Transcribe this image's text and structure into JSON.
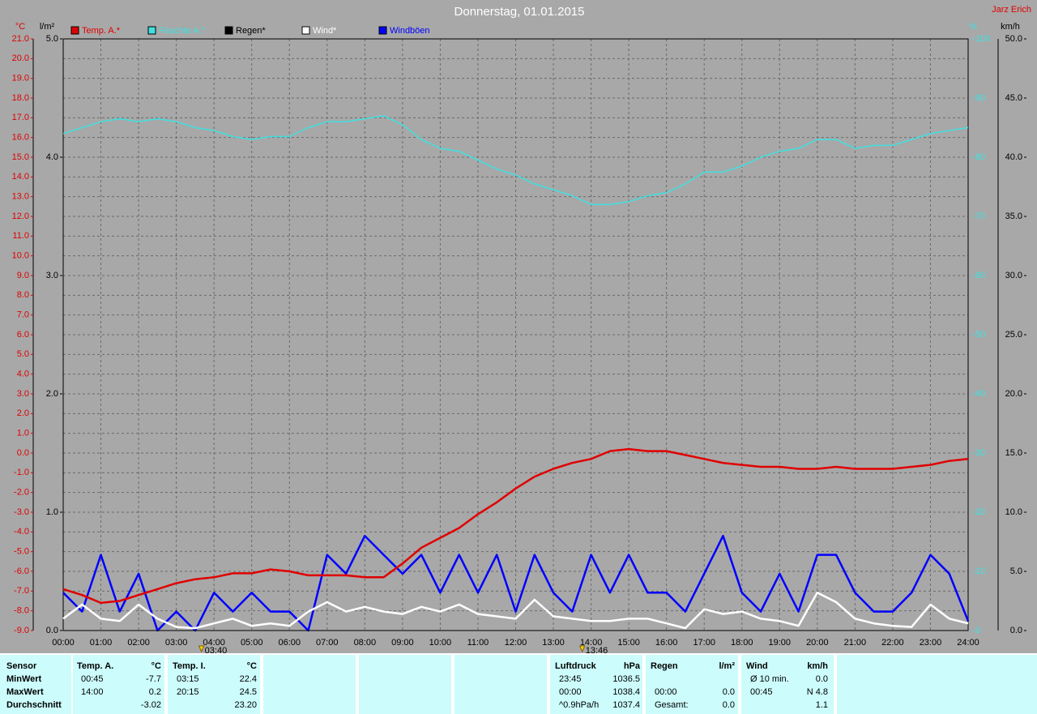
{
  "chart_data": {
    "type": "line",
    "title": "Donnerstag, 01.01.2015",
    "author": "Jarz Erich",
    "axis_units": {
      "y": "°C",
      "y2": "l/m²",
      "y3": "%",
      "y4": "km/h"
    },
    "x": [
      0,
      0.5,
      1,
      1.5,
      2,
      2.5,
      3,
      3.5,
      4,
      4.5,
      5,
      5.5,
      6,
      6.5,
      7,
      7.5,
      8,
      8.5,
      9,
      9.5,
      10,
      10.5,
      11,
      11.5,
      12,
      12.5,
      13,
      13.5,
      14,
      14.5,
      15,
      15.5,
      16,
      16.5,
      17,
      17.5,
      18,
      18.5,
      19,
      19.5,
      20,
      20.5,
      21,
      21.5,
      22,
      22.5,
      23,
      23.5,
      24
    ],
    "xlim": [
      0,
      24
    ],
    "xticks": [
      {
        "value": 0,
        "label": "00:00"
      },
      {
        "value": 1,
        "label": "01:00"
      },
      {
        "value": 2,
        "label": "02:00"
      },
      {
        "value": 3,
        "label": "03:00"
      },
      {
        "value": 4,
        "label": "04:00"
      },
      {
        "value": 5,
        "label": "05:00"
      },
      {
        "value": 6,
        "label": "06:00"
      },
      {
        "value": 7,
        "label": "07:00"
      },
      {
        "value": 8,
        "label": "08:00"
      },
      {
        "value": 9,
        "label": "09:00"
      },
      {
        "value": 10,
        "label": "10:00"
      },
      {
        "value": 11,
        "label": "11:00"
      },
      {
        "value": 12,
        "label": "12:00"
      },
      {
        "value": 13,
        "label": "13:00"
      },
      {
        "value": 14,
        "label": "14:00"
      },
      {
        "value": 15,
        "label": "15:00"
      },
      {
        "value": 16,
        "label": "16:00"
      },
      {
        "value": 17,
        "label": "17:00"
      },
      {
        "value": 18,
        "label": "18:00"
      },
      {
        "value": 19,
        "label": "19:00"
      },
      {
        "value": 20,
        "label": "20:00"
      },
      {
        "value": 21,
        "label": "21:00"
      },
      {
        "value": 22,
        "label": "22:00"
      },
      {
        "value": 23,
        "label": "23:00"
      },
      {
        "value": 24,
        "label": "24:00"
      }
    ],
    "ylim": [
      -9,
      21
    ],
    "yticks": [
      {
        "value": -9,
        "label": "-9.0"
      },
      {
        "value": -8,
        "label": "-8.0"
      },
      {
        "value": -7,
        "label": "-7.0"
      },
      {
        "value": -6,
        "label": "-6.0"
      },
      {
        "value": -5,
        "label": "-5.0"
      },
      {
        "value": -4,
        "label": "-4.0"
      },
      {
        "value": -3,
        "label": "-3.0"
      },
      {
        "value": -2,
        "label": "-2.0"
      },
      {
        "value": -1,
        "label": "-1.0"
      },
      {
        "value": 0,
        "label": "0.0"
      },
      {
        "value": 1,
        "label": "1.0"
      },
      {
        "value": 2,
        "label": "2.0"
      },
      {
        "value": 3,
        "label": "3.0"
      },
      {
        "value": 4,
        "label": "4.0"
      },
      {
        "value": 5,
        "label": "5.0"
      },
      {
        "value": 6,
        "label": "6.0"
      },
      {
        "value": 7,
        "label": "7.0"
      },
      {
        "value": 8,
        "label": "8.0"
      },
      {
        "value": 9,
        "label": "9.0"
      },
      {
        "value": 10,
        "label": "10.0"
      },
      {
        "value": 11,
        "label": "11.0"
      },
      {
        "value": 12,
        "label": "12.0"
      },
      {
        "value": 13,
        "label": "13.0"
      },
      {
        "value": 14,
        "label": "14.0"
      },
      {
        "value": 15,
        "label": "15.0"
      },
      {
        "value": 16,
        "label": "16.0"
      },
      {
        "value": 17,
        "label": "17.0"
      },
      {
        "value": 18,
        "label": "18.0"
      },
      {
        "value": 19,
        "label": "19.0"
      },
      {
        "value": 20,
        "label": "20.0"
      },
      {
        "value": 21,
        "label": "21.0"
      }
    ],
    "y2lim": [
      0,
      5
    ],
    "y2ticks": [
      {
        "value": 0,
        "label": "0.0"
      },
      {
        "value": 1,
        "label": "1.0"
      },
      {
        "value": 2,
        "label": "2.0"
      },
      {
        "value": 3,
        "label": "3.0"
      },
      {
        "value": 4,
        "label": "4.0"
      },
      {
        "value": 5,
        "label": "5.0"
      }
    ],
    "y3lim": [
      0,
      100
    ],
    "y3ticks": [
      0,
      10,
      20,
      30,
      40,
      50,
      60,
      70,
      80,
      90,
      100
    ],
    "y4lim": [
      0,
      50
    ],
    "y4ticks": [
      {
        "value": 0,
        "label": "0.0"
      },
      {
        "value": 5,
        "label": "5.0"
      },
      {
        "value": 10,
        "label": "10.0"
      },
      {
        "value": 15,
        "label": "15.0"
      },
      {
        "value": 20,
        "label": "20.0"
      },
      {
        "value": 25,
        "label": "25.0"
      },
      {
        "value": 30,
        "label": "30.0"
      },
      {
        "value": 35,
        "label": "35.0"
      },
      {
        "value": 40,
        "label": "40.0"
      },
      {
        "value": 45,
        "label": "45.0"
      },
      {
        "value": 50,
        "label": "50.0"
      }
    ],
    "grid": true,
    "series": [
      {
        "name": "Temp. A.*",
        "color": "#e00000",
        "axis": "y",
        "values": [
          -6.9,
          -7.2,
          -7.6,
          -7.5,
          -7.2,
          -6.9,
          -6.6,
          -6.4,
          -6.3,
          -6.1,
          -6.1,
          -5.9,
          -6.0,
          -6.2,
          -6.2,
          -6.2,
          -6.3,
          -6.3,
          -5.6,
          -4.8,
          -4.3,
          -3.8,
          -3.1,
          -2.5,
          -1.8,
          -1.2,
          -0.8,
          -0.5,
          -0.3,
          0.1,
          0.2,
          0.1,
          0.1,
          -0.1,
          -0.3,
          -0.5,
          -0.6,
          -0.7,
          -0.7,
          -0.8,
          -0.8,
          -0.7,
          -0.8,
          -0.8,
          -0.8,
          -0.7,
          -0.6,
          -0.4,
          -0.3
        ]
      },
      {
        "name": "Feuchte A.*",
        "color": "#40e0e0",
        "axis": "y3",
        "values": [
          84,
          85,
          86,
          86.5,
          86,
          86.5,
          86,
          85,
          84.5,
          83.5,
          83,
          83.5,
          83.5,
          85,
          86,
          86,
          86.5,
          87,
          85.5,
          83,
          81.5,
          81,
          79.5,
          78,
          77,
          75.5,
          74.5,
          73.5,
          72,
          72,
          72.5,
          73.5,
          74,
          75.5,
          77.5,
          77.5,
          78.5,
          80,
          81,
          81.5,
          83,
          83,
          81.5,
          82,
          82,
          83,
          84,
          84.5,
          85
        ]
      },
      {
        "name": "Regen*",
        "color": "#000000",
        "axis": "y2",
        "values": [
          0,
          0,
          0,
          0,
          0,
          0,
          0,
          0,
          0,
          0,
          0,
          0,
          0,
          0,
          0,
          0,
          0,
          0,
          0,
          0,
          0,
          0,
          0,
          0,
          0,
          0,
          0,
          0,
          0,
          0,
          0,
          0,
          0,
          0,
          0,
          0,
          0,
          0,
          0,
          0,
          0,
          0,
          0,
          0,
          0,
          0,
          0,
          0,
          0
        ]
      },
      {
        "name": "Wind*",
        "color": "#ffffff",
        "axis": "y4",
        "values": [
          1.0,
          2.2,
          1.0,
          0.8,
          2.2,
          1.0,
          0.3,
          0.2,
          0.6,
          1.0,
          0.4,
          0.6,
          0.4,
          1.6,
          2.4,
          1.6,
          2.0,
          1.6,
          1.4,
          2.0,
          1.6,
          2.2,
          1.4,
          1.2,
          1.0,
          2.6,
          1.2,
          1.0,
          0.8,
          0.8,
          1.0,
          1.0,
          0.6,
          0.2,
          1.8,
          1.4,
          1.6,
          1.0,
          0.8,
          0.4,
          3.2,
          2.4,
          1.0,
          0.6,
          0.4,
          0.3,
          2.2,
          1.0,
          0.6
        ]
      },
      {
        "name": "Windböen",
        "color": "#0000ff",
        "axis": "y4",
        "values": [
          3.2,
          1.6,
          6.4,
          1.6,
          4.8,
          0,
          1.6,
          0,
          3.2,
          1.6,
          3.2,
          1.6,
          1.6,
          0,
          6.4,
          4.8,
          8,
          6.4,
          4.8,
          6.4,
          3.2,
          6.4,
          3.2,
          6.4,
          1.6,
          6.4,
          3.2,
          1.6,
          6.4,
          3.2,
          6.4,
          3.2,
          3.2,
          1.6,
          4.8,
          8,
          3.2,
          1.6,
          4.8,
          1.6,
          6.4,
          6.4,
          3.2,
          1.6,
          1.6,
          3.2,
          6.4,
          4.8,
          0.8
        ]
      }
    ],
    "markers": [
      {
        "x": 3.667,
        "label": "03:40"
      },
      {
        "x": 13.767,
        "label": "13:46"
      }
    ]
  },
  "table": {
    "row_labels": [
      "Sensor",
      "MinWert",
      "MaxWert",
      "Durchschnitt"
    ],
    "groups": [
      {
        "header": [
          "Temp. A.",
          "°C"
        ],
        "rows": [
          [
            "00:45",
            "-7.7"
          ],
          [
            "14:00",
            "0.2"
          ],
          [
            null,
            "-3.02"
          ]
        ]
      },
      {
        "header": [
          "Temp. I.",
          "°C"
        ],
        "rows": [
          [
            "03:15",
            "22.4"
          ],
          [
            "20:15",
            "24.5"
          ],
          [
            null,
            "23.20"
          ]
        ]
      },
      {
        "header": [
          "Luftdruck",
          "hPa"
        ],
        "rows": [
          [
            "23:45",
            "1036.5"
          ],
          [
            "00:00",
            "1038.4"
          ],
          [
            "^0.9hPa/h",
            "1037.4"
          ]
        ]
      },
      {
        "header": [
          "Regen",
          "l/m²"
        ],
        "rows": [
          [
            null,
            null
          ],
          [
            "00:00",
            "0.0"
          ],
          [
            "Gesamt:",
            "0.0"
          ]
        ]
      },
      {
        "header": [
          "Wind",
          "km/h"
        ],
        "rows": [
          [
            "Ø 10 min.",
            "0.0"
          ],
          [
            "00:45",
            "N 4.8"
          ],
          [
            null,
            "1.1"
          ]
        ]
      }
    ]
  }
}
